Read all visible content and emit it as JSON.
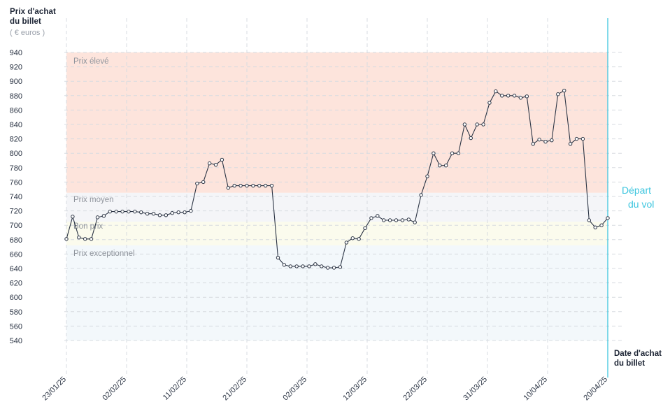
{
  "chart_data": {
    "type": "line",
    "ylabel_line1": "Prix d'achat",
    "ylabel_line2": "du billet",
    "yunit": "( € euros )",
    "xlabel_line1": "Date d'achat",
    "xlabel_line2": "du billet",
    "ylim": [
      540,
      940
    ],
    "yticks": [
      940,
      920,
      900,
      880,
      860,
      840,
      820,
      800,
      780,
      760,
      740,
      720,
      700,
      680,
      660,
      640,
      620,
      600,
      580,
      560,
      540
    ],
    "xticks": [
      "23/01/25",
      "02/02/25",
      "11/02/25",
      "21/02/25",
      "02/03/25",
      "12/03/25",
      "22/03/25",
      "31/03/25",
      "10/04/25",
      "20/04/25"
    ],
    "grid": true,
    "bands": [
      {
        "label": "Prix élevé",
        "from": 745,
        "to": 940,
        "color": "#fde4dc"
      },
      {
        "label": "Prix moyen",
        "from": 705,
        "to": 745,
        "color": "#f4f5f8"
      },
      {
        "label": "Bon prix",
        "from": 672,
        "to": 705,
        "color": "#fbfbed"
      },
      {
        "label": "Prix exceptionnel",
        "from": 540,
        "to": 672,
        "color": "#f3f8fb"
      }
    ],
    "departure": {
      "line1": "Départ",
      "line2": "du vol",
      "color": "#3ec6df"
    },
    "line_color": "#2b3444",
    "values": [
      681,
      712,
      683,
      681,
      681,
      711,
      713,
      719,
      719,
      719,
      719,
      719,
      718,
      716,
      716,
      714,
      714,
      717,
      718,
      718,
      720,
      758,
      760,
      786,
      784,
      791,
      752,
      755,
      755,
      755,
      755,
      755,
      755,
      755,
      655,
      645,
      643,
      643,
      643,
      643,
      646,
      643,
      641,
      641,
      642,
      676,
      682,
      681,
      696,
      710,
      713,
      707,
      707,
      707,
      707,
      708,
      704,
      742,
      768,
      800,
      783,
      783,
      800,
      800,
      840,
      821,
      840,
      840,
      870,
      886,
      880,
      880,
      880,
      877,
      879,
      813,
      819,
      816,
      818,
      882,
      887,
      813,
      820,
      820,
      707,
      697,
      700,
      710
    ]
  }
}
